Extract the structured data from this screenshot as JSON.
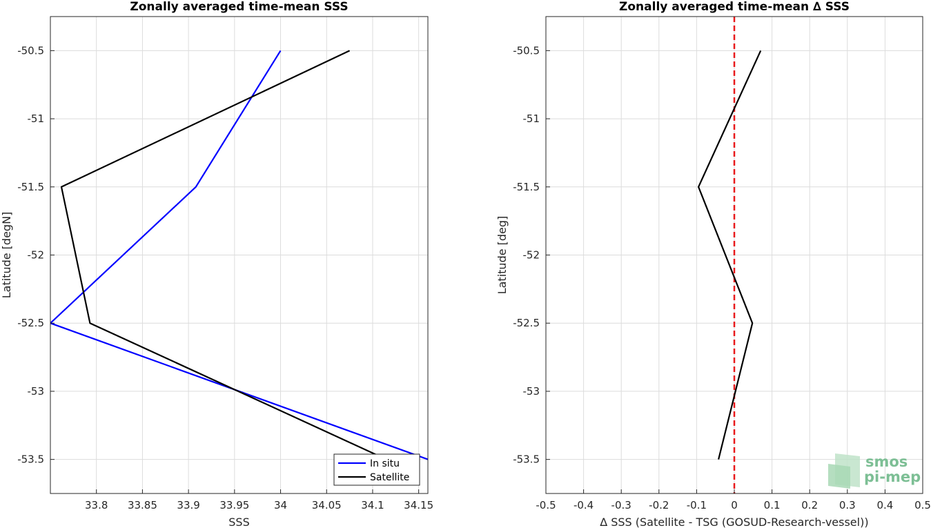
{
  "chart_data": [
    {
      "type": "line",
      "title": "Zonally averaged time-mean SSS",
      "xlabel": "SSS",
      "ylabel": "Latitude [degN]",
      "xlim": [
        33.75,
        34.16
      ],
      "ylim": [
        -53.75,
        -50.25
      ],
      "xticks": [
        "33.8",
        "33.85",
        "33.9",
        "33.95",
        "34",
        "34.05",
        "34.1",
        "34.15"
      ],
      "yticks": [
        "-50.5",
        "-51",
        "-51.5",
        "-52",
        "-52.5",
        "-53",
        "-53.5"
      ],
      "grid": true,
      "legend_position": "bottom-right",
      "y": [
        -50.5,
        -51.5,
        -52.5,
        -53.5
      ],
      "series": [
        {
          "name": "In situ",
          "color": "#0000ff",
          "x": [
            34.0,
            33.908,
            33.75,
            34.16
          ]
        },
        {
          "name": "Satellite",
          "color": "#000000",
          "x": [
            34.075,
            33.762,
            33.793,
            34.115
          ]
        }
      ]
    },
    {
      "type": "line",
      "title": "Zonally averaged time-mean ∆ SSS",
      "xlabel": "∆ SSS (Satellite - TSG (GOSUD-Research-vessel))",
      "ylabel": "Latitude [deg]",
      "xlim": [
        -0.5,
        0.5
      ],
      "ylim": [
        -53.75,
        -50.25
      ],
      "xticks": [
        "-0.5",
        "-0.4",
        "-0.3",
        "-0.2",
        "-0.1",
        "0",
        "0.1",
        "0.2",
        "0.3",
        "0.4",
        "0.5"
      ],
      "yticks": [
        "-50.5",
        "-51",
        "-51.5",
        "-52",
        "-52.5",
        "-53",
        "-53.5"
      ],
      "grid": true,
      "y": [
        -50.5,
        -51.5,
        -52.5,
        -53.5
      ],
      "series": [
        {
          "color": "#000000",
          "x": [
            0.07,
            -0.095,
            0.048,
            -0.042
          ]
        }
      ],
      "reference_line": {
        "x": 0,
        "color": "#e8191b",
        "style": "dashed"
      }
    }
  ],
  "logo": {
    "line1": "smos",
    "line2": "pi-mep",
    "color": "#7dbf95"
  }
}
